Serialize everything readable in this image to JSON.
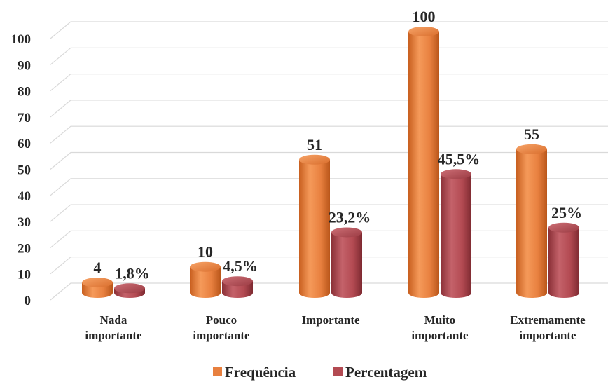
{
  "chart_data": {
    "type": "bar",
    "categories": [
      [
        "Nada",
        "importante"
      ],
      [
        "Pouco",
        "importante"
      ],
      [
        "Importante"
      ],
      [
        "Muito",
        "importante"
      ],
      [
        "Extremamente",
        "importante"
      ]
    ],
    "series": [
      {
        "name": "Frequência",
        "values": [
          4,
          10,
          51,
          100,
          55
        ],
        "labels": [
          "4",
          "10",
          "51",
          "100",
          "55"
        ],
        "color": "#e8803f"
      },
      {
        "name": "Percentagem",
        "values": [
          1.8,
          4.5,
          23.2,
          45.5,
          25
        ],
        "labels": [
          "1,8%",
          "4,5%",
          "23,2%",
          "45,5%",
          "25%"
        ],
        "color": "#b34a52"
      }
    ],
    "yticks": [
      "0",
      "10",
      "20",
      "30",
      "40",
      "50",
      "60",
      "70",
      "80",
      "90",
      "100"
    ],
    "ylim": [
      0,
      100
    ],
    "grid": true,
    "legend_position": "bottom",
    "style": "3d-cylinder"
  }
}
